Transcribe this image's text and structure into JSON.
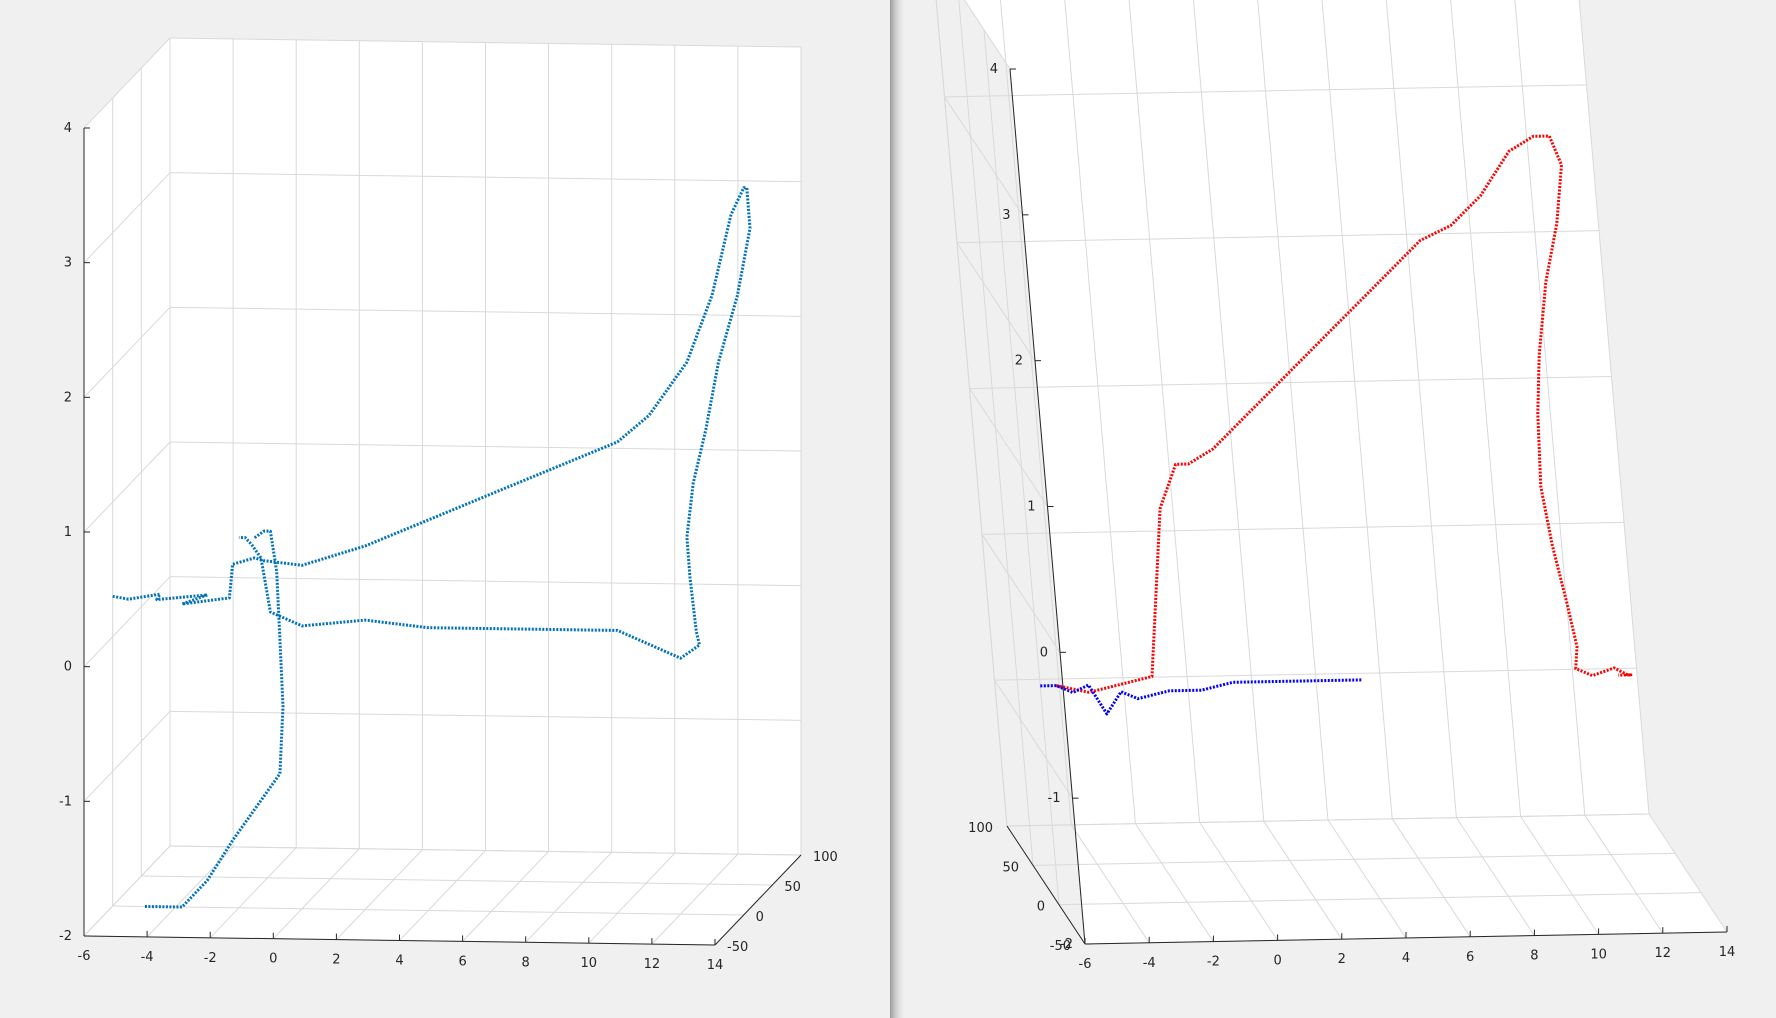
{
  "colors": {
    "background": "#f0f0f0",
    "axes_bg": "#ffffff",
    "grid": "#d9d9d9",
    "axis": "#262626",
    "text": "#262626"
  },
  "chart_data": [
    {
      "type": "scatter",
      "projection": "3d",
      "title": "",
      "xlabel": "",
      "ylabel": "",
      "zlabel": "",
      "grid": true,
      "xlim": [
        -6,
        14
      ],
      "ylim": [
        -50,
        100
      ],
      "zlim": [
        -2,
        4
      ],
      "x_ticks": [
        "-6",
        "-4",
        "-2",
        "0",
        "2",
        "4",
        "6",
        "8",
        "10",
        "12",
        "14"
      ],
      "y_ticks": [
        "-50",
        "0",
        "50",
        "100"
      ],
      "z_ticks": [
        "-2",
        "-1",
        "0",
        "1",
        "2",
        "3",
        "4"
      ],
      "series": [
        {
          "color": "#0072bd",
          "x": [
            -6,
            -5.5,
            -4.5,
            -4.6,
            -3,
            -3.8,
            -2.3,
            -2.2,
            -1.5,
            -1.2,
            0,
            2,
            4,
            6,
            8,
            10,
            11,
            12.2,
            13,
            13.6,
            14,
            14.1,
            14.2,
            13.8,
            13.2,
            12.8,
            12.4,
            12.2,
            12.3,
            12.5,
            12.6,
            12,
            11,
            10,
            9,
            8,
            6,
            4,
            2,
            0,
            -1,
            -1.3,
            -1.6,
            -1.8,
            -2
          ],
          "y": [
            0,
            0,
            0,
            0,
            0,
            0,
            0,
            0,
            0,
            0,
            0,
            0,
            0,
            0,
            0,
            0,
            0,
            0,
            0,
            0,
            0,
            0,
            0,
            0,
            0,
            0,
            0,
            0,
            0,
            0,
            0,
            0,
            0,
            0,
            0,
            0,
            0,
            0,
            0,
            0,
            0,
            0,
            0,
            0,
            0
          ],
          "z": [
            0.3,
            0.28,
            0.32,
            0.28,
            0.32,
            0.25,
            0.3,
            0.55,
            0.6,
            0.58,
            0.55,
            0.7,
            0.9,
            1.1,
            1.3,
            1.5,
            1.7,
            2.1,
            2.6,
            3.2,
            3.4,
            3.4,
            3.1,
            2.6,
            2.1,
            1.6,
            1.2,
            0.8,
            0.5,
            0.1,
            0,
            -0.1,
            0,
            0.1,
            0.1,
            0.1,
            0.1,
            0.1,
            0.15,
            0.1,
            0.2,
            0.6,
            0.7,
            0.75,
            0.75
          ]
        },
        {
          "color": "#0072bd",
          "x": [
            -1.5,
            -1.2,
            -1,
            -0.8,
            -0.7,
            -0.6,
            -0.7,
            -1.3,
            -2.2,
            -3,
            -3.8,
            -4.5,
            -5
          ],
          "y": [
            0,
            0,
            0,
            0,
            0,
            0,
            0,
            0,
            0,
            0,
            0,
            0,
            0
          ],
          "z": [
            0.75,
            0.8,
            0.8,
            0.5,
            0,
            -0.5,
            -1,
            -1.2,
            -1.5,
            -1.8,
            -2.0,
            -2.0,
            -2.0
          ]
        }
      ]
    },
    {
      "type": "scatter",
      "projection": "3d",
      "title": "",
      "xlabel": "",
      "ylabel": "",
      "zlabel": "",
      "grid": true,
      "xlim": [
        -6,
        14
      ],
      "ylim": [
        -50,
        100
      ],
      "zlim": [
        -2,
        4
      ],
      "x_ticks": [
        "-6",
        "-4",
        "-2",
        "0",
        "2",
        "4",
        "6",
        "8",
        "10",
        "12",
        "14"
      ],
      "y_ticks": [
        "-50",
        "0",
        "50",
        "100"
      ],
      "z_ticks": [
        "-2",
        "-1",
        "0",
        "1",
        "2",
        "3",
        "4"
      ],
      "series": [
        {
          "color": "#ff0000",
          "x": [
            -5.5,
            -4.5,
            -3.5,
            -2.5,
            -1.8,
            -1.2,
            -0.8,
            -0.4,
            0,
            1,
            2,
            3,
            4,
            5,
            6,
            7,
            8,
            9,
            10,
            10.8,
            11.3,
            11.6,
            11.3,
            10.8,
            10.4,
            10.2,
            10.1,
            10.3,
            10.6,
            10.8,
            10.7,
            11.2,
            11.9,
            12.3,
            12.4,
            12.2,
            12
          ],
          "y": [
            0,
            0,
            0,
            0,
            0,
            0,
            0,
            0,
            0,
            0,
            0,
            0,
            0,
            0,
            0,
            0,
            0,
            0,
            0,
            0,
            0,
            0,
            0,
            0,
            0,
            0,
            0,
            0,
            0,
            0,
            0,
            0,
            0,
            0,
            0,
            0,
            0
          ],
          "z": [
            -0.5,
            -0.55,
            -0.5,
            -0.45,
            0.7,
            1.0,
            1.0,
            1.05,
            1.1,
            1.3,
            1.5,
            1.7,
            1.9,
            2.1,
            2.3,
            2.5,
            2.6,
            2.8,
            3.1,
            3.2,
            3.2,
            3.0,
            2.6,
            2.2,
            1.7,
            1.3,
            0.8,
            0.4,
            0,
            -0.3,
            -0.45,
            -0.5,
            -0.45,
            -0.5,
            -0.5,
            -0.5,
            -0.5
          ]
        },
        {
          "color": "#0000ff",
          "x": [
            -6,
            -5.5,
            -5,
            -4.5,
            -4,
            -3.5,
            -3,
            -2,
            -1,
            0,
            1,
            2,
            3,
            4
          ],
          "y": [
            0,
            0,
            0,
            0,
            0,
            0,
            0,
            0,
            0,
            0,
            0,
            0,
            0,
            0
          ],
          "z": [
            -0.5,
            -0.5,
            -0.55,
            -0.5,
            -0.7,
            -0.55,
            -0.6,
            -0.55,
            -0.55,
            -0.5,
            -0.5,
            -0.5,
            -0.5,
            -0.5
          ]
        }
      ]
    }
  ]
}
